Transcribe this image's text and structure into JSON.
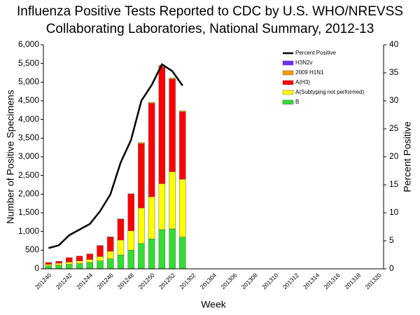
{
  "chart_data": {
    "type": "bar",
    "title": [
      "Influenza Positive Tests Reported to CDC by U.S. WHO/NREVSS",
      "Collaborating Laboratories, National Summary, 2012-13"
    ],
    "xlabel": "Week",
    "ylabel": "Number of Positive Specimens",
    "y2label": "Percent Positive",
    "stacked": true,
    "legend": "upper right",
    "categories": [
      "201240",
      null,
      "201242",
      null,
      "201244",
      null,
      "201246",
      null,
      "201248",
      null,
      "201250",
      null,
      "201252",
      null,
      "201302",
      null,
      "201304",
      null,
      "201306",
      null,
      "201308",
      null,
      "201310",
      null,
      "201312",
      null,
      "201314",
      null,
      "201316",
      null,
      "201318",
      null,
      "201320"
    ],
    "ylim": [
      0,
      6000
    ],
    "yticks": [
      0,
      {
        "value": 500,
        "label": "500"
      },
      {
        "value": 1000,
        "label": "1,000"
      },
      {
        "value": 1500,
        "label": "1,500"
      },
      {
        "value": 2000,
        "label": "2,000"
      },
      {
        "value": 2500,
        "label": "2,500"
      },
      {
        "value": 3000,
        "label": "3,000"
      },
      {
        "value": 3500,
        "label": "3,500"
      },
      {
        "value": 4000,
        "label": "4,000"
      },
      {
        "value": 4500,
        "label": "4,500"
      },
      {
        "value": 5000,
        "label": "5,000"
      },
      {
        "value": 5500,
        "label": "5,500"
      },
      {
        "value": 6000,
        "label": "6,000"
      }
    ],
    "y2lim": [
      0,
      40
    ],
    "y2ticks": [
      0,
      5,
      10,
      15,
      20,
      25,
      30,
      35,
      40
    ],
    "series": [
      {
        "name": "B",
        "type": "bar",
        "color": "#33dd33",
        "values": [
          80,
          100,
          120,
          140,
          170,
          210,
          270,
          370,
          500,
          680,
          800,
          1050,
          1070,
          850,
          null,
          null,
          null,
          null,
          null,
          null,
          null,
          null,
          null,
          null,
          null,
          null,
          null,
          null,
          null,
          null,
          null,
          null,
          null
        ]
      },
      {
        "name": "A(Subtyping not performed)",
        "type": "bar",
        "color": "#ffff00",
        "values": [
          40,
          50,
          60,
          70,
          80,
          120,
          200,
          400,
          520,
          950,
          1130,
          1230,
          1530,
          1550,
          null,
          null,
          null,
          null,
          null,
          null,
          null,
          null,
          null,
          null,
          null,
          null,
          null,
          null,
          null,
          null,
          null,
          null,
          null
        ]
      },
      {
        "name": "A(H3)",
        "type": "bar",
        "color": "#ff0000",
        "values": [
          50,
          50,
          120,
          130,
          150,
          290,
          380,
          560,
          980,
          1720,
          2500,
          3120,
          2480,
          1800,
          null,
          null,
          null,
          null,
          null,
          null,
          null,
          null,
          null,
          null,
          null,
          null,
          null,
          null,
          null,
          null,
          null,
          null,
          null
        ]
      },
      {
        "name": "2009 H1N1",
        "type": "bar",
        "color": "#ff9900",
        "values": [
          0,
          0,
          0,
          0,
          0,
          5,
          5,
          5,
          10,
          30,
          30,
          50,
          30,
          30,
          null,
          null,
          null,
          null,
          null,
          null,
          null,
          null,
          null,
          null,
          null,
          null,
          null,
          null,
          null,
          null,
          null,
          null,
          null
        ]
      },
      {
        "name": "H3N2v",
        "type": "bar",
        "color": "#7030ff",
        "values": [
          0,
          0,
          0,
          0,
          0,
          0,
          0,
          0,
          0,
          0,
          0,
          0,
          0,
          0,
          null,
          null,
          null,
          null,
          null,
          null,
          null,
          null,
          null,
          null,
          null,
          null,
          null,
          null,
          null,
          null,
          null,
          null,
          null
        ]
      },
      {
        "name": "Percent Positive",
        "type": "line",
        "axis": "y2",
        "color": "#000000",
        "values": [
          3.7,
          4.2,
          6,
          7,
          8,
          10.3,
          13.3,
          19,
          23,
          30,
          32.8,
          36.5,
          35.3,
          32.7,
          null,
          null,
          null,
          null,
          null,
          null,
          null,
          null,
          null,
          null,
          null,
          null,
          null,
          null,
          null,
          null,
          null,
          null,
          null
        ]
      }
    ]
  }
}
